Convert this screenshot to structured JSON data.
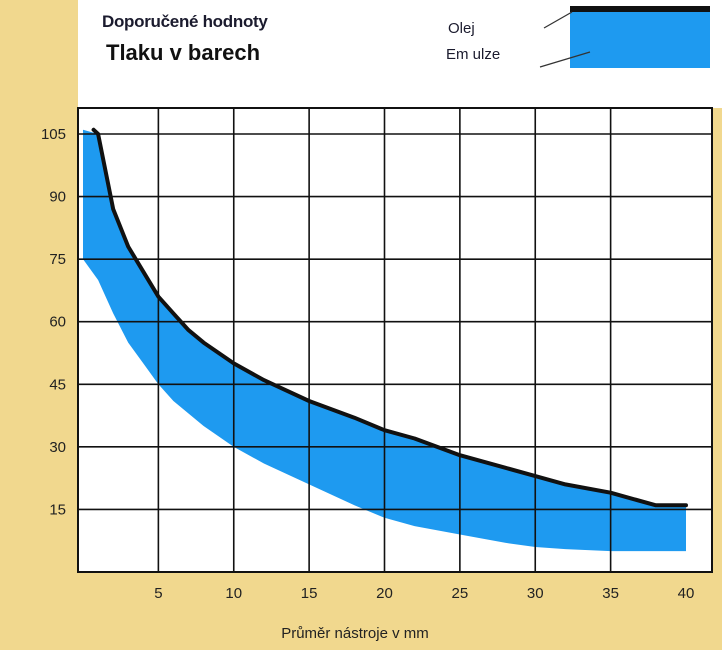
{
  "header": {
    "title": "Doporučené hodnoty",
    "subtitle": "Tlaku v barech"
  },
  "legend": {
    "oil_label": "Olej",
    "emulsion_label": "Em ulze"
  },
  "colors": {
    "background": "#f1d88e",
    "plot_bg": "#ffffff",
    "grid": "#111111",
    "band_fill": "#1e9af0",
    "oil_line": "#111111"
  },
  "chart_data": {
    "type": "area",
    "xlabel": "Průměr nástroje v  mm",
    "ylabel": "",
    "xlim": [
      0,
      40
    ],
    "ylim": [
      0,
      105
    ],
    "x_ticks": [
      5,
      10,
      15,
      20,
      25,
      30,
      35,
      40
    ],
    "y_ticks": [
      15,
      30,
      45,
      60,
      75,
      90,
      105
    ],
    "grid": true,
    "legend_position": "top-right",
    "series": [
      {
        "name": "Olej",
        "kind": "line",
        "x": [
          0.7,
          1,
          2,
          3,
          4,
          5,
          6,
          7,
          8,
          10,
          12,
          15,
          18,
          20,
          22,
          25,
          28,
          30,
          32,
          35,
          38,
          40
        ],
        "y": [
          106,
          105,
          87,
          78,
          72,
          66,
          62,
          58,
          55,
          50,
          46,
          41,
          37,
          34,
          32,
          28,
          25,
          23,
          21,
          19,
          16,
          16
        ]
      },
      {
        "name": "Em ulze",
        "kind": "band",
        "x": [
          0,
          1,
          2,
          3,
          4,
          5,
          6,
          7,
          8,
          10,
          12,
          15,
          18,
          20,
          22,
          25,
          28,
          30,
          32,
          35,
          38,
          40
        ],
        "upper": [
          106,
          105,
          87,
          78,
          72,
          66,
          62,
          58,
          55,
          50,
          46,
          41,
          37,
          34,
          32,
          28,
          25,
          23,
          21,
          19,
          16,
          16
        ],
        "lower": [
          75,
          70,
          62,
          55,
          50,
          45,
          41,
          38,
          35,
          30,
          26,
          21,
          16,
          13,
          11,
          9,
          7,
          6,
          5.5,
          5,
          5,
          5
        ]
      }
    ]
  }
}
